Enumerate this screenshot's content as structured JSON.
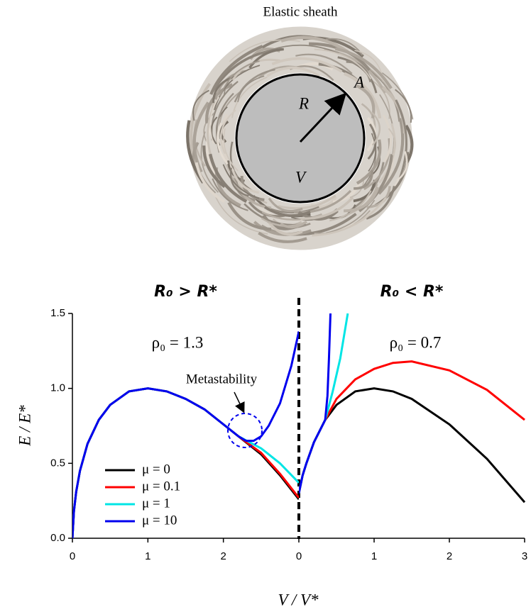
{
  "figure": {
    "title": "Elastic sheath",
    "labels": [
      "R",
      "A",
      "V"
    ],
    "x_label": "V / V*",
    "y_label": "E / E*"
  },
  "chart_data": [
    {
      "type": "line",
      "title": "R₀ > R*",
      "annotations": [
        "ρ₀ = 1.3",
        "Metastability"
      ],
      "xlim": [
        0,
        3
      ],
      "xticks": [
        0,
        1,
        2
      ],
      "ylim": [
        0,
        1.5
      ],
      "yticks": [
        {
          "value": 0,
          "label": "0.0"
        },
        0.5,
        {
          "value": 1,
          "label": "1.0"
        },
        1.5
      ],
      "legend": "lower left",
      "series": [
        {
          "name": "μ = 0",
          "color": "#000000",
          "x": [
            0,
            0.02,
            0.05,
            0.1,
            0.2,
            0.35,
            0.5,
            0.75,
            1,
            1.25,
            1.5,
            1.75,
            2,
            2.2,
            2.5,
            2.75,
            3
          ],
          "values": [
            0,
            0.18,
            0.31,
            0.45,
            0.63,
            0.79,
            0.89,
            0.98,
            1.0,
            0.98,
            0.93,
            0.86,
            0.76,
            0.68,
            0.56,
            0.42,
            0.26
          ]
        },
        {
          "name": "μ = 0.1",
          "color": "#ff0000",
          "x": [
            0,
            0.02,
            0.05,
            0.1,
            0.2,
            0.35,
            0.5,
            0.75,
            1,
            1.25,
            1.5,
            1.75,
            2,
            2.2,
            2.5,
            2.75,
            3
          ],
          "values": [
            0,
            0.18,
            0.31,
            0.45,
            0.63,
            0.79,
            0.89,
            0.98,
            1.0,
            0.98,
            0.93,
            0.86,
            0.76,
            0.68,
            0.57,
            0.43,
            0.27
          ]
        },
        {
          "name": "μ = 1",
          "color": "#00e5e5",
          "x": [
            0,
            0.02,
            0.05,
            0.1,
            0.2,
            0.35,
            0.5,
            0.75,
            1,
            1.25,
            1.5,
            1.75,
            2,
            2.2,
            2.5,
            2.75,
            3
          ],
          "values": [
            0,
            0.18,
            0.31,
            0.45,
            0.63,
            0.79,
            0.89,
            0.98,
            1.0,
            0.98,
            0.93,
            0.86,
            0.76,
            0.68,
            0.6,
            0.5,
            0.37
          ]
        },
        {
          "name": "μ = 10",
          "color": "#0000ee",
          "x": [
            0,
            0.02,
            0.05,
            0.1,
            0.2,
            0.35,
            0.5,
            0.75,
            1,
            1.25,
            1.5,
            1.75,
            2,
            2.2,
            2.3,
            2.4,
            2.5,
            2.6,
            2.75,
            2.9,
            3
          ],
          "values": [
            0,
            0.18,
            0.31,
            0.45,
            0.63,
            0.79,
            0.89,
            0.98,
            1.0,
            0.98,
            0.93,
            0.86,
            0.76,
            0.68,
            0.65,
            0.65,
            0.68,
            0.75,
            0.9,
            1.15,
            1.38
          ]
        }
      ]
    },
    {
      "type": "line",
      "title": "R₀ < R*",
      "annotations": [
        "ρ₀ = 0.7"
      ],
      "xlim": [
        0,
        3
      ],
      "xticks": [
        0,
        1,
        2,
        3
      ],
      "ylim": [
        0,
        1.5
      ],
      "series": [
        {
          "color": "#000000",
          "x": [
            0,
            0.05,
            0.1,
            0.2,
            0.35,
            0.5,
            0.75,
            1,
            1.25,
            1.5,
            2,
            2.5,
            3
          ],
          "values": [
            0.3,
            0.42,
            0.5,
            0.64,
            0.79,
            0.89,
            0.98,
            1.0,
            0.98,
            0.93,
            0.76,
            0.53,
            0.24
          ]
        },
        {
          "color": "#ff0000",
          "x": [
            0,
            0.05,
            0.1,
            0.2,
            0.35,
            0.5,
            0.75,
            1,
            1.25,
            1.5,
            2,
            2.5,
            3
          ],
          "values": [
            0.3,
            0.42,
            0.5,
            0.64,
            0.79,
            0.93,
            1.06,
            1.13,
            1.17,
            1.18,
            1.12,
            0.99,
            0.79
          ]
        },
        {
          "color": "#00e5e5",
          "x": [
            0,
            0.05,
            0.1,
            0.2,
            0.35,
            0.45,
            0.55,
            0.65
          ],
          "values": [
            0.3,
            0.42,
            0.5,
            0.64,
            0.79,
            0.98,
            1.2,
            1.5
          ]
        },
        {
          "color": "#0000ee",
          "x": [
            0,
            0.05,
            0.1,
            0.2,
            0.35,
            0.38,
            0.4,
            0.42
          ],
          "values": [
            0.3,
            0.42,
            0.5,
            0.64,
            0.79,
            0.95,
            1.2,
            1.5
          ]
        }
      ]
    }
  ]
}
